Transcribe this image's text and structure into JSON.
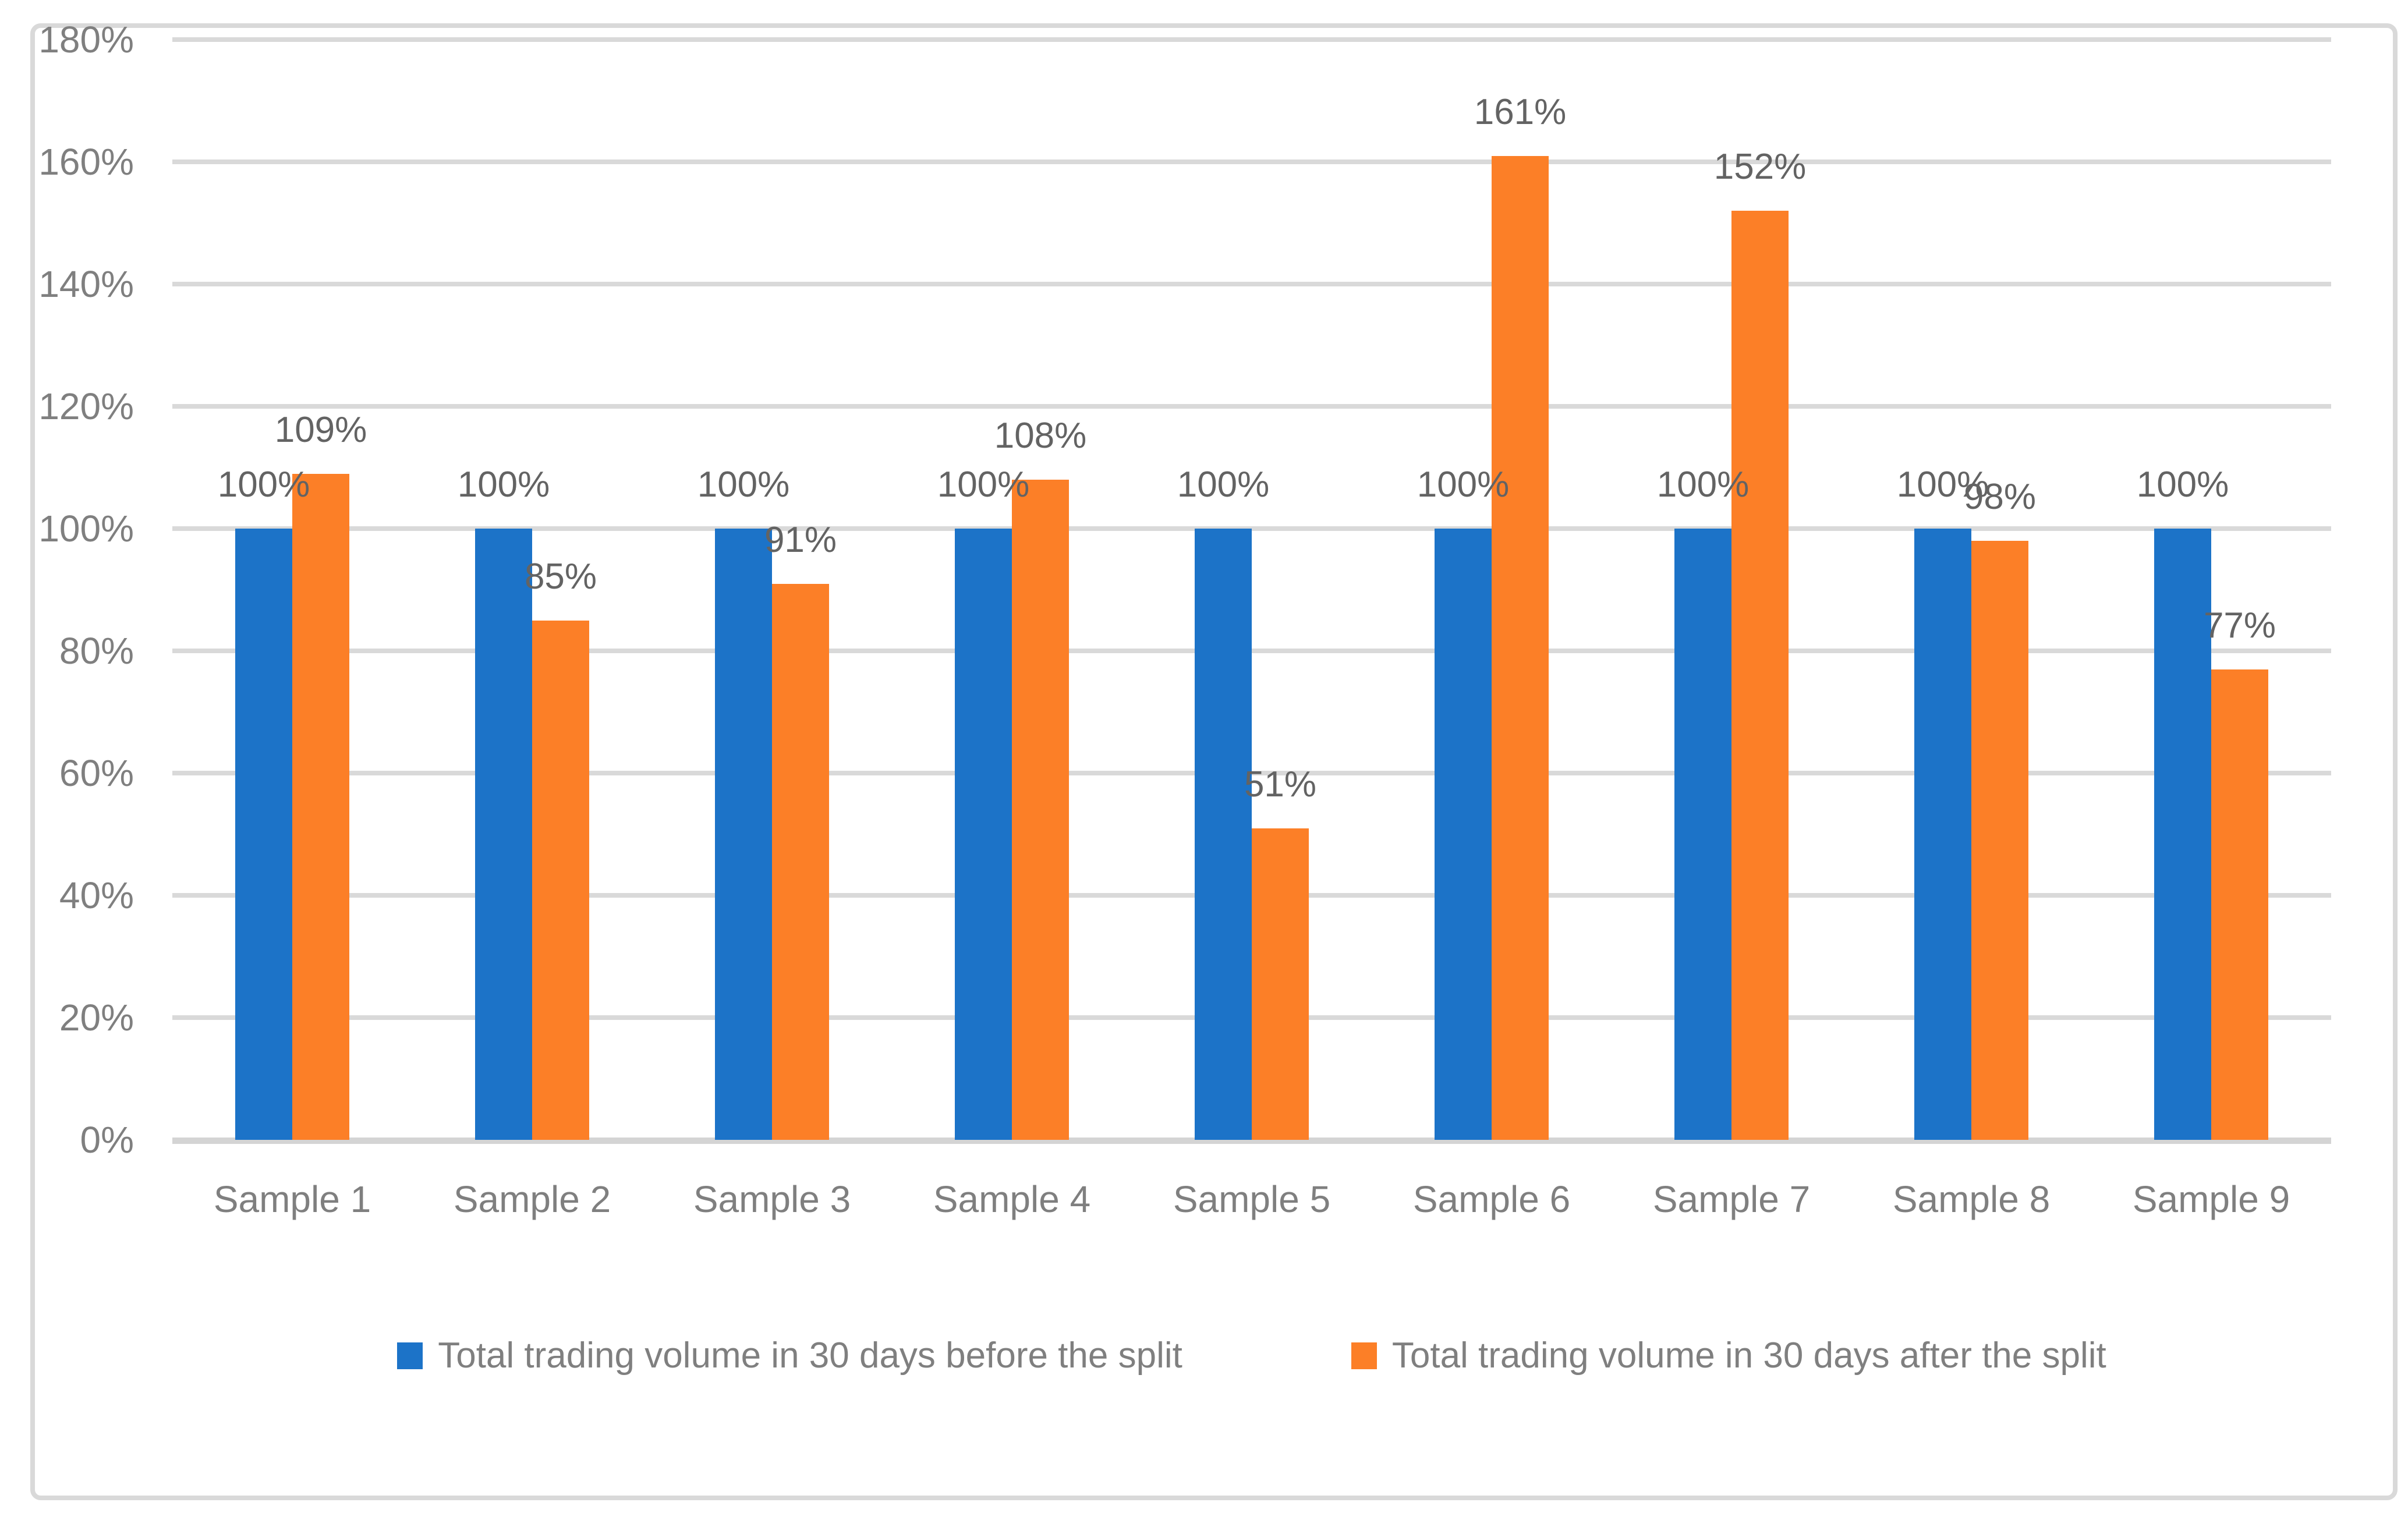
{
  "chart_data": {
    "type": "bar",
    "title": "",
    "categories": [
      "Sample 1",
      "Sample 2",
      "Sample 3",
      "Sample 4",
      "Sample 5",
      "Sample 6",
      "Sample 7",
      "Sample 8",
      "Sample 9"
    ],
    "series": [
      {
        "name": "Total trading volume in 30 days before the split",
        "color": "#1C73C8",
        "values": [
          100,
          100,
          100,
          100,
          100,
          100,
          100,
          100,
          100
        ],
        "labels": [
          "100%",
          "100%",
          "100%",
          "100%",
          "100%",
          "100%",
          "100%",
          "100%",
          "100%"
        ]
      },
      {
        "name": "Total trading volume in 30 days after the split",
        "color": "#FC7F27",
        "values": [
          109,
          85,
          91,
          108,
          51,
          161,
          152,
          98,
          77
        ],
        "labels": [
          "109%",
          "85%",
          "91%",
          "108%",
          "51%",
          "161%",
          "152%",
          "98%",
          "77%"
        ]
      }
    ],
    "xlabel": "",
    "ylabel": "",
    "ylim": [
      0,
      180
    ],
    "yticks": [
      {
        "value": 0,
        "label": "0%"
      },
      {
        "value": 20,
        "label": "20%"
      },
      {
        "value": 40,
        "label": "40%"
      },
      {
        "value": 60,
        "label": "60%"
      },
      {
        "value": 80,
        "label": "80%"
      },
      {
        "value": 100,
        "label": "100%"
      },
      {
        "value": 120,
        "label": "120%"
      },
      {
        "value": 140,
        "label": "140%"
      },
      {
        "value": 160,
        "label": "160%"
      },
      {
        "value": 180,
        "label": "180%"
      }
    ],
    "grid": true,
    "legend_position": "bottom",
    "colors": {
      "gridline": "#D9D9D9",
      "axis_line": "#D4D4D4",
      "tick_text": "#7F7F7F",
      "data_label_text": "#636363",
      "figure_border": "#D9D9D9",
      "background": "#FFFFFF"
    }
  }
}
